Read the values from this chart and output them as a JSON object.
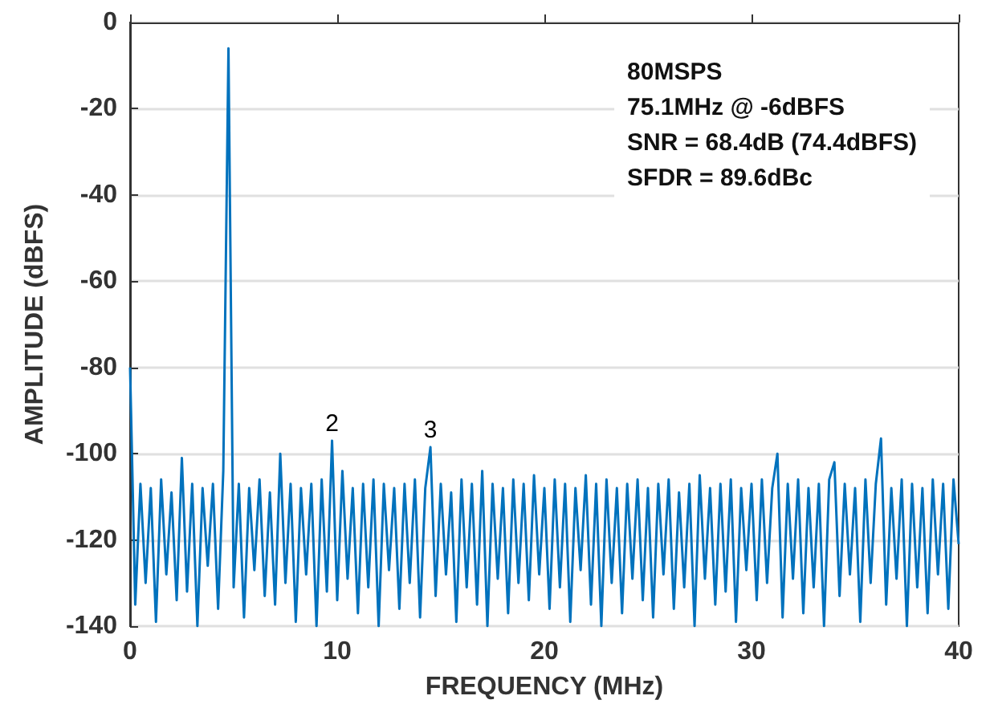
{
  "chart_data": {
    "type": "line",
    "xlabel": "FREQUENCY (MHz)",
    "ylabel": "AMPLITUDE (dBFS)",
    "annotations": [
      "80MSPS",
      "75.1MHz @ -6dBFS",
      "SNR = 68.4dB (74.4dBFS)",
      "SFDR = 89.6dBc",
      {
        "text": "2",
        "x": 9.75,
        "y": -97
      },
      {
        "text": "3",
        "x": 14.5,
        "y": -98.5
      }
    ],
    "xlim": [
      0,
      40
    ],
    "xticks": [
      0,
      10,
      20,
      30,
      40
    ],
    "ylim": [
      -140,
      0
    ],
    "yticks": [
      -140,
      -120,
      -100,
      -80,
      -60,
      -40,
      -20,
      0
    ],
    "grid": "y",
    "marker": "none",
    "line_style": "solid",
    "series": [
      {
        "color": "#0072bd",
        "x": [
          0,
          0.25,
          0.5,
          0.75,
          1,
          1.25,
          1.5,
          1.75,
          2,
          2.25,
          2.5,
          2.75,
          3,
          3.25,
          3.5,
          3.75,
          4,
          4.25,
          4.5,
          4.75,
          5,
          5.25,
          5.5,
          5.75,
          6,
          6.25,
          6.5,
          6.75,
          7,
          7.25,
          7.5,
          7.75,
          8,
          8.25,
          8.5,
          8.75,
          9,
          9.25,
          9.5,
          9.75,
          10,
          10.25,
          10.5,
          10.75,
          11,
          11.25,
          11.5,
          11.75,
          12,
          12.25,
          12.5,
          12.75,
          13,
          13.25,
          13.5,
          13.75,
          14,
          14.25,
          14.5,
          14.75,
          15,
          15.25,
          15.5,
          15.75,
          16,
          16.25,
          16.5,
          16.75,
          17,
          17.25,
          17.5,
          17.75,
          18,
          18.25,
          18.5,
          18.75,
          19,
          19.25,
          19.5,
          19.75,
          20,
          20.25,
          20.5,
          20.75,
          21,
          21.25,
          21.5,
          21.75,
          22,
          22.25,
          22.5,
          22.75,
          23,
          23.25,
          23.5,
          23.75,
          24,
          24.25,
          24.5,
          24.75,
          25,
          25.25,
          25.5,
          25.75,
          26,
          26.25,
          26.5,
          26.75,
          27,
          27.25,
          27.5,
          27.75,
          28,
          28.25,
          28.5,
          28.75,
          29,
          29.25,
          29.5,
          29.75,
          30,
          30.25,
          30.5,
          30.75,
          31,
          31.25,
          31.5,
          31.75,
          32,
          32.25,
          32.5,
          32.75,
          33,
          33.25,
          33.5,
          33.75,
          34,
          34.25,
          34.5,
          34.75,
          35,
          35.25,
          35.5,
          35.75,
          36,
          36.25,
          36.5,
          36.75,
          37,
          37.25,
          37.5,
          37.75,
          38,
          38.25,
          38.5,
          38.75,
          39,
          39.25,
          39.5,
          39.75,
          40
        ],
        "values": [
          -80,
          -135,
          -107,
          -130,
          -108,
          -139,
          -106,
          -128,
          -109,
          -134,
          -101,
          -132,
          -107,
          -140,
          -108,
          -126,
          -107,
          -136,
          -104,
          -6,
          -131,
          -107,
          -138,
          -108,
          -127,
          -106,
          -133,
          -109,
          -135,
          -100,
          -130,
          -107,
          -139,
          -108,
          -128,
          -107,
          -140,
          -106,
          -132,
          -97,
          -134,
          -104,
          -129,
          -108,
          -137,
          -107,
          -131,
          -106,
          -140,
          -107,
          -127,
          -108,
          -136,
          -107,
          -130,
          -106,
          -138,
          -108,
          -98.5,
          -133,
          -107,
          -128,
          -109,
          -139,
          -106,
          -131,
          -107,
          -135,
          -104,
          -140,
          -107,
          -129,
          -108,
          -137,
          -106,
          -130,
          -107,
          -134,
          -105,
          -128,
          -108,
          -136,
          -106,
          -131,
          -107,
          -139,
          -108,
          -127,
          -105,
          -135,
          -107,
          -140,
          -106,
          -130,
          -108,
          -137,
          -107,
          -129,
          -106,
          -134,
          -108,
          -138,
          -107,
          -128,
          -106,
          -136,
          -109,
          -131,
          -107,
          -140,
          -105,
          -129,
          -108,
          -135,
          -107,
          -132,
          -106,
          -139,
          -108,
          -127,
          -107,
          -134,
          -106,
          -130,
          -108,
          -100,
          -138,
          -107,
          -129,
          -106,
          -137,
          -108,
          -131,
          -107,
          -140,
          -106,
          -102,
          -133,
          -107,
          -128,
          -108,
          -139,
          -106,
          -130,
          -107,
          -96.5,
          -135,
          -108,
          -129,
          -106,
          -140,
          -107,
          -131,
          -108,
          -137,
          -106,
          -128,
          -107,
          -136,
          -106,
          -121
        ]
      }
    ]
  }
}
